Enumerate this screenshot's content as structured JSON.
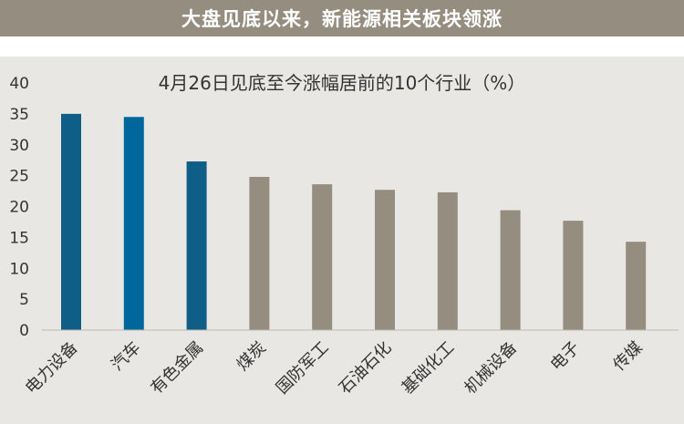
{
  "banner": {
    "title": "大盘见底以来，新能源相关板块领涨"
  },
  "colors": {
    "banner_bg": "#958d80",
    "plot_bg": "#e9e7e4",
    "highlight": "#0f5e87",
    "highlight2": "#00679c",
    "default": "#958d80"
  },
  "chart_data": {
    "type": "bar",
    "title": "4月26日见底至今涨幅居前的10个行业（%）",
    "xlabel": "",
    "ylabel": "",
    "ylim": [
      0,
      40
    ],
    "yticks": [
      0,
      5,
      10,
      15,
      20,
      25,
      30,
      35,
      40
    ],
    "grid": false,
    "categories": [
      "电力设备",
      "汽车",
      "有色金属",
      "煤炭",
      "国防军工",
      "石油石化",
      "基础化工",
      "机械设备",
      "电子",
      "传媒"
    ],
    "values": [
      35.0,
      34.5,
      27.3,
      24.8,
      23.6,
      22.7,
      22.3,
      19.4,
      17.7,
      14.3
    ],
    "bar_colors": [
      "#0f5e87",
      "#00679c",
      "#0f5e87",
      "#958d80",
      "#958d80",
      "#958d80",
      "#958d80",
      "#958d80",
      "#958d80",
      "#958d80"
    ]
  }
}
